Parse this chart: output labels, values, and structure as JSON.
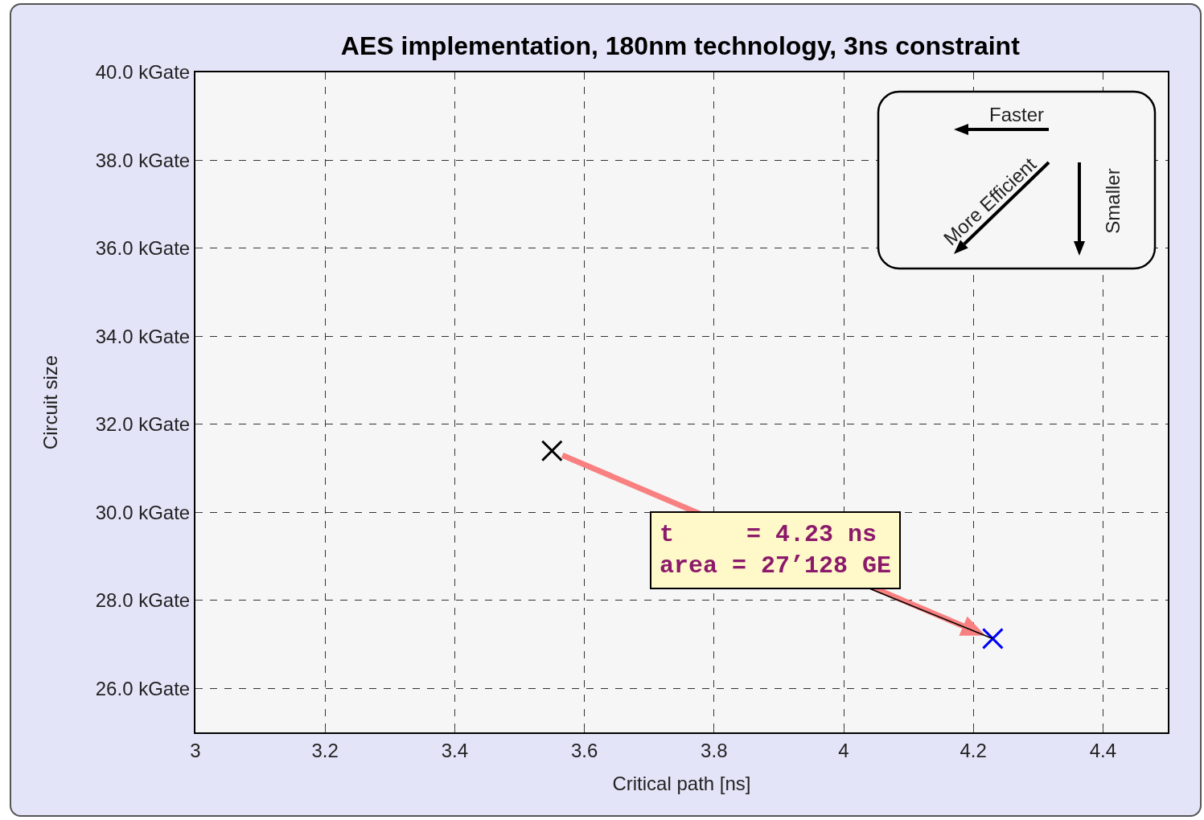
{
  "chart_data": {
    "type": "scatter",
    "title": "AES implementation, 180nm technology, 3ns constraint",
    "xlabel": "Critical path [ns]",
    "ylabel": "Circuit size",
    "series": [
      {
        "color": "#000000",
        "x": [
          3.55
        ],
        "values": [
          31.4
        ]
      },
      {
        "color": "#0000ff",
        "x": [
          4.23
        ],
        "values": [
          27.13
        ]
      }
    ],
    "marker": "cross",
    "xlim": [
      3,
      4.5
    ],
    "xticks": [
      3,
      3.2,
      3.4,
      3.6,
      3.8,
      4,
      4.2,
      4.4
    ],
    "ylim": [
      25,
      40
    ],
    "yticks": [
      {
        "value": 26,
        "label": "26.0 kGate"
      },
      {
        "value": 28,
        "label": "28.0 kGate"
      },
      {
        "value": 30,
        "label": "30.0 kGate"
      },
      {
        "value": 32,
        "label": "32.0 kGate"
      },
      {
        "value": 34,
        "label": "34.0 kGate"
      },
      {
        "value": 36,
        "label": "36.0 kGate"
      },
      {
        "value": 38,
        "label": "38.0 kGate"
      },
      {
        "value": 40,
        "label": "40.0 kGate"
      }
    ],
    "grid": true,
    "annotations": [
      {
        "text": "t     = 4.23 ns\narea = 27’128 GE",
        "x": 4.23,
        "y": 27.128
      },
      "Faster",
      "More Efficient",
      "Smaller"
    ]
  }
}
